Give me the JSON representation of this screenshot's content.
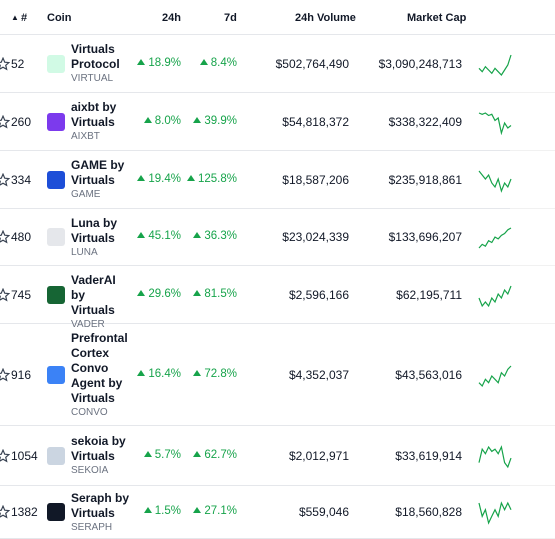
{
  "header": {
    "rank": "#",
    "coin": "Coin",
    "change_24h": "24h",
    "change_7d": "7d",
    "volume_24h": "24h Volume",
    "market_cap": "Market Cap"
  },
  "colors": {
    "positive": "#16a34a",
    "border": "#e5e7eb"
  },
  "rows": [
    {
      "rank": "52",
      "name_lines": [
        "Virtuals",
        "Protocol"
      ],
      "symbol": "VIRTUAL",
      "change_24h": "18.9%",
      "change_7d": "8.4%",
      "volume": "$502,764,490",
      "market_cap": "$3,090,248,713",
      "logo_color": "#d1fae5",
      "spark": [
        6,
        4,
        7,
        5,
        3,
        6,
        4,
        2,
        5,
        8,
        14
      ]
    },
    {
      "rank": "260",
      "name_lines": [
        "aixbt by",
        "Virtuals"
      ],
      "symbol": "AIXBT",
      "change_24h": "8.0%",
      "change_7d": "39.9%",
      "volume": "$54,818,372",
      "market_cap": "$338,322,409",
      "logo_color": "#7c3aed",
      "spark": [
        20,
        19,
        20,
        18,
        19,
        14,
        16,
        4,
        12,
        8,
        10
      ]
    },
    {
      "rank": "334",
      "name_lines": [
        "GAME by",
        "Virtuals"
      ],
      "symbol": "GAME",
      "change_24h": "19.4%",
      "change_7d": "125.8%",
      "volume": "$18,587,206",
      "market_cap": "$235,918,861",
      "logo_color": "#1d4ed8",
      "spark": [
        20,
        19,
        18,
        19,
        17,
        16,
        18,
        15,
        17,
        16,
        18
      ]
    },
    {
      "rank": "480",
      "name_lines": [
        "Luna by",
        "Virtuals"
      ],
      "symbol": "LUNA",
      "change_24h": "45.1%",
      "change_7d": "36.3%",
      "volume": "$23,024,339",
      "market_cap": "$133,696,207",
      "logo_color": "#e5e7eb",
      "spark": [
        8,
        10,
        9,
        12,
        11,
        14,
        13,
        15,
        16,
        18,
        19
      ]
    },
    {
      "rank": "745",
      "name_lines": [
        "VaderAI by",
        "Virtuals"
      ],
      "symbol": "VADER",
      "change_24h": "29.6%",
      "change_7d": "81.5%",
      "volume": "$2,596,166",
      "market_cap": "$62,195,711",
      "logo_color": "#166534",
      "spark": [
        14,
        12,
        13,
        12,
        14,
        13,
        15,
        14,
        16,
        15,
        17
      ]
    },
    {
      "rank": "916",
      "name_lines": [
        "Prefrontal",
        "Cortex",
        "Convo",
        "Agent by",
        "Virtuals"
      ],
      "symbol": "CONVO",
      "change_24h": "16.4%",
      "change_7d": "72.8%",
      "volume": "$4,352,037",
      "market_cap": "$43,563,016",
      "logo_color": "#3b82f6",
      "spark": [
        12,
        11,
        13,
        12,
        14,
        13,
        12,
        15,
        14,
        16,
        17
      ]
    },
    {
      "rank": "1054",
      "name_lines": [
        "sekoia by",
        "Virtuals"
      ],
      "symbol": "SEKOIA",
      "change_24h": "5.7%",
      "change_7d": "62.7%",
      "volume": "$2,012,971",
      "market_cap": "$33,619,914",
      "logo_color": "#cbd5e1",
      "spark": [
        12,
        18,
        16,
        19,
        17,
        18,
        16,
        19,
        12,
        10,
        14
      ]
    },
    {
      "rank": "1382",
      "name_lines": [
        "Seraph by",
        "Virtuals"
      ],
      "symbol": "SERAPH",
      "change_24h": "1.5%",
      "change_7d": "27.1%",
      "volume": "$559,046",
      "market_cap": "$18,560,828",
      "logo_color": "#111827",
      "spark": [
        18,
        16,
        17,
        15,
        16,
        17,
        16,
        18,
        17,
        18,
        17
      ]
    }
  ]
}
